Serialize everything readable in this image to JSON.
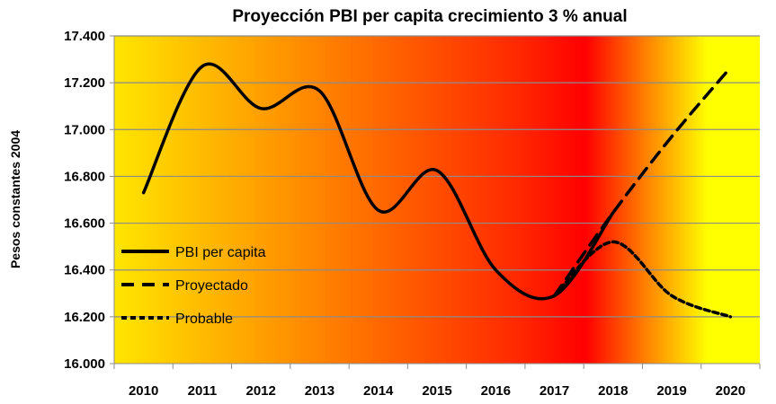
{
  "chart_data": {
    "type": "line",
    "title": "Proyección PBI per capita crecimiento 3 % anual",
    "xlabel": "",
    "ylabel": "Pesos constantes 2004",
    "categories": [
      "2010",
      "2011",
      "2012",
      "2013",
      "2014",
      "2015",
      "2016",
      "2017",
      "2018",
      "2019",
      "2020"
    ],
    "ylim": [
      16000,
      17400
    ],
    "yticks": [
      16000,
      16200,
      16400,
      16600,
      16800,
      17000,
      17200,
      17400
    ],
    "ytick_labels": [
      "16.000",
      "16.200",
      "16.400",
      "16.600",
      "16.800",
      "17.000",
      "17.200",
      "17.400"
    ],
    "grid": true,
    "smoothed": true,
    "legend_position": "left",
    "background": "horizontal gradient yellow-orange-red-yellow",
    "series": [
      {
        "name": "PBI per capita",
        "style": "solid",
        "color": "#000000",
        "values": [
          16730,
          17270,
          17090,
          17165,
          16655,
          16825,
          16400,
          16290,
          16645,
          null,
          null
        ]
      },
      {
        "name": "Proyectado",
        "style": "dashed",
        "color": "#000000",
        "values": [
          null,
          null,
          null,
          null,
          null,
          null,
          null,
          16290,
          16645,
          16970,
          17265
        ]
      },
      {
        "name": "Probable",
        "style": "dotted",
        "color": "#000000",
        "values": [
          null,
          null,
          null,
          null,
          null,
          null,
          null,
          16290,
          16520,
          16290,
          16200
        ]
      }
    ]
  }
}
